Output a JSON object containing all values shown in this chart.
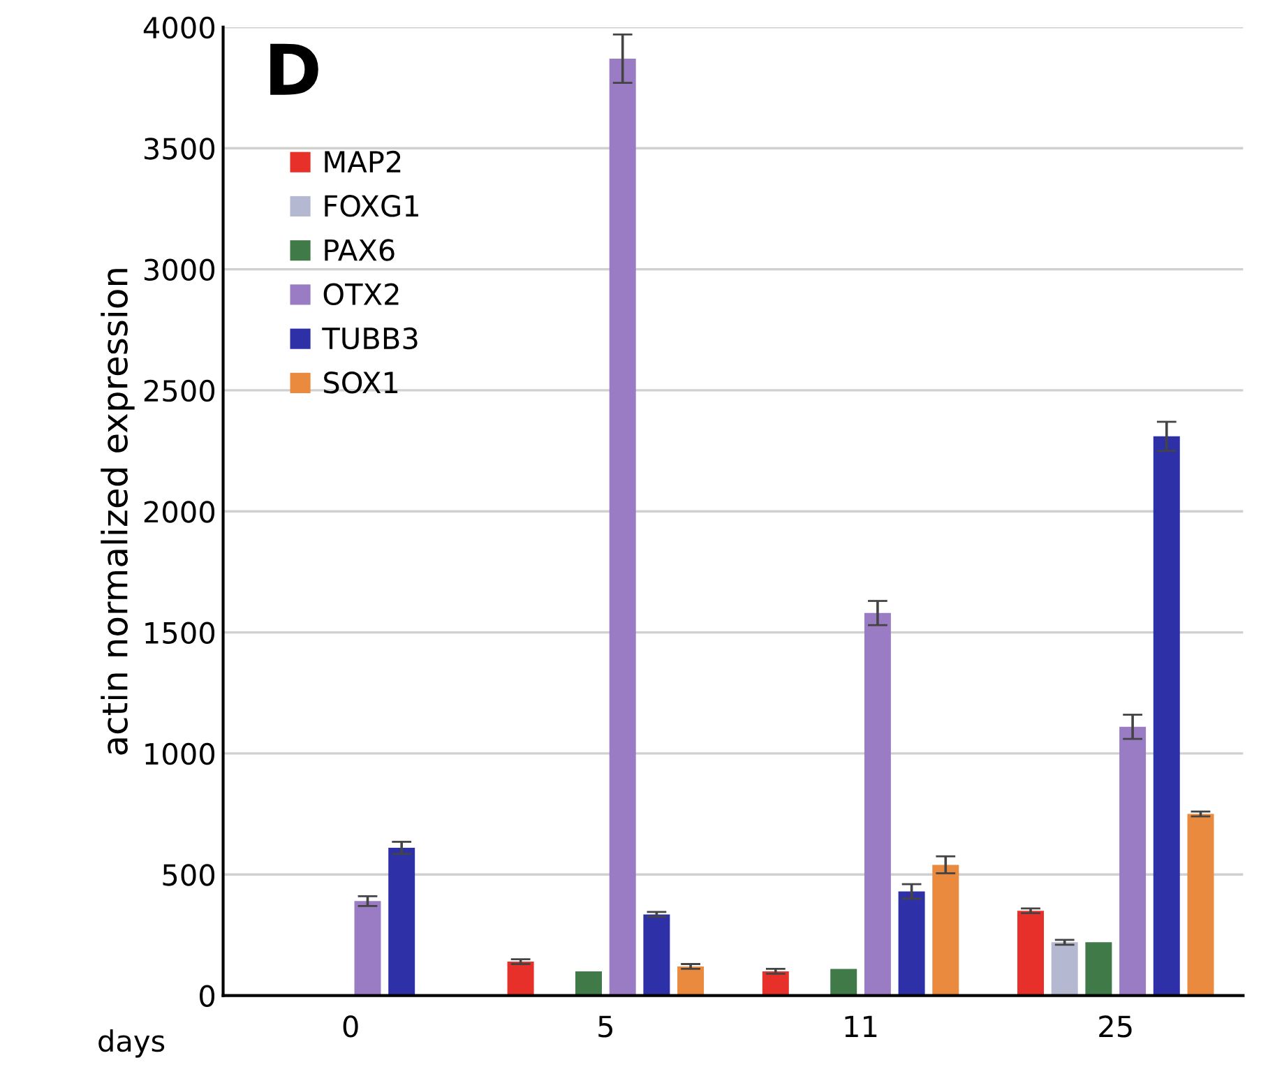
{
  "chart_data": {
    "type": "bar",
    "ylabel": "actin normalized expression",
    "xlabel": "days",
    "annotations": [
      "D"
    ],
    "categories": [
      "0",
      "5",
      "11",
      "25"
    ],
    "ylim": [
      0,
      4000
    ],
    "yticks": [
      0,
      500,
      1000,
      1500,
      2000,
      2500,
      3000,
      3500,
      4000
    ],
    "grid": "y",
    "legend": "top left",
    "series": [
      {
        "name": "MAP2",
        "color": "#e8302a",
        "values": [
          0,
          140,
          100,
          350
        ],
        "errors": [
          null,
          10,
          10,
          10
        ]
      },
      {
        "name": "FOXG1",
        "color": "#b4b8d0",
        "values": [
          0,
          0,
          0,
          220
        ],
        "errors": [
          null,
          null,
          null,
          10
        ]
      },
      {
        "name": "PAX6",
        "color": "#3f7a48",
        "values": [
          0,
          100,
          110,
          220
        ],
        "errors": [
          null,
          null,
          null,
          null
        ]
      },
      {
        "name": "OTX2",
        "color": "#9a7cc4",
        "values": [
          390,
          3870,
          1580,
          1110
        ],
        "errors": [
          20,
          100,
          50,
          50
        ]
      },
      {
        "name": "TUBB3",
        "color": "#2e30a8",
        "values": [
          610,
          335,
          430,
          2310
        ],
        "errors": [
          25,
          10,
          30,
          60
        ]
      },
      {
        "name": "SOX1",
        "color": "#ea8a3e",
        "values": [
          0,
          120,
          540,
          750
        ],
        "errors": [
          null,
          10,
          35,
          10
        ]
      }
    ]
  }
}
